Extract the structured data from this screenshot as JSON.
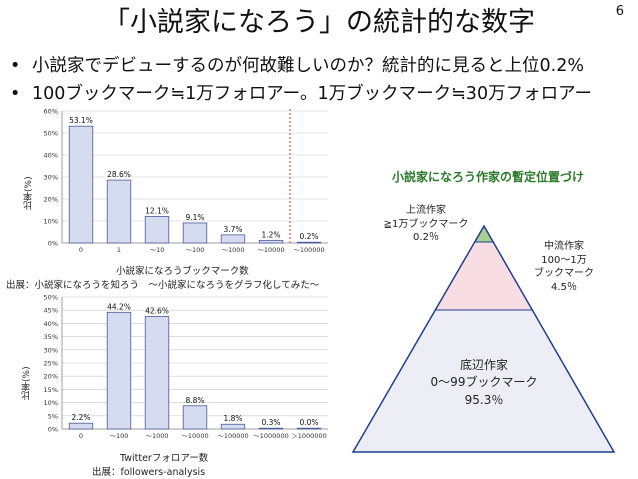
{
  "page_number": "6",
  "title": "「小説家になろう」の統計的な数字",
  "bullets": [
    "小説家でデビューするのが何故難しいのか？統計的に見ると上位0.2%",
    "100ブックマーク≒1万フォロアー。1万ブックマーク≒30万フォロアー"
  ],
  "bullet_symbol": "•",
  "chart_data": [
    {
      "type": "bar",
      "title": "",
      "ylabel": "比率(%)",
      "xlabel": "小説家になろうブックマーク数",
      "categories": [
        "0",
        "1",
        "～10",
        "～100",
        "～1000",
        "～10000",
        "～100000"
      ],
      "values": [
        53.1,
        28.6,
        12.1,
        9.1,
        3.7,
        1.2,
        0.2
      ],
      "value_labels": [
        "53.1%",
        "28.6%",
        "12.1%",
        "9.1%",
        "3.7%",
        "1.2%",
        "0.2%"
      ],
      "ylim": [
        0,
        60
      ],
      "yticks": [
        0,
        10,
        20,
        30,
        40,
        50,
        60
      ],
      "ytick_labels": [
        "0%",
        "10%",
        "20%",
        "30%",
        "40%",
        "50%",
        "60%"
      ],
      "reference_line": "dashed red vertical line between ～10000 and ～100000",
      "bar_color": "#d6dcf0",
      "source": "出展：小説家になろうを知ろう　～小説家になろうをグラフ化してみた～"
    },
    {
      "type": "bar",
      "title": "",
      "ylabel": "比率(%)",
      "xlabel": "Twitterフォロアー数",
      "categories": [
        "0",
        "～100",
        "～1000",
        "～10000",
        "～100000",
        "～1000000",
        "＞1000000"
      ],
      "values": [
        2.2,
        44.2,
        42.6,
        8.8,
        1.8,
        0.3,
        0.0
      ],
      "value_labels": [
        "2.2%",
        "44.2%",
        "42.6%",
        "8.8%",
        "1.8%",
        "0.3%",
        "0.0%"
      ],
      "ylim": [
        0,
        50
      ],
      "yticks": [
        0,
        5,
        10,
        15,
        20,
        25,
        30,
        35,
        40,
        45,
        50
      ],
      "ytick_labels": [
        "0%",
        "5%",
        "10%",
        "15%",
        "20%",
        "25%",
        "30%",
        "35%",
        "40%",
        "45%",
        "50%"
      ],
      "bar_color": "#d6dcf0",
      "source": "出展：followers-analysis"
    }
  ],
  "pyramid": {
    "title": "小説家になろう作家の暫定位置づけ",
    "tiers": [
      {
        "name": "上流作家",
        "range": "≧1万ブックマーク",
        "percent": "0.2％",
        "color": "#a9d08e"
      },
      {
        "name": "中流作家",
        "range": "100〜1万",
        "range2": "ブックマーク",
        "percent": "4.5％",
        "color": "#f8dde2"
      },
      {
        "name": "底辺作家",
        "range": "0〜99ブックマーク",
        "percent": "95.3％",
        "color": "#edeef5"
      }
    ],
    "outline_color": "#1f3f8f"
  }
}
